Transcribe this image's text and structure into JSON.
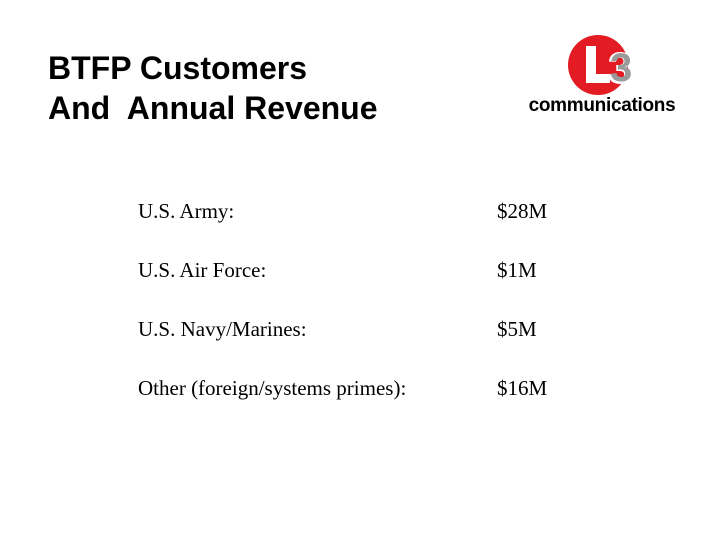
{
  "title": {
    "line1": "BTFP Customers",
    "line2": "And  Annual Revenue"
  },
  "logo": {
    "mark_text": "L3",
    "wordmark": "communications",
    "brand_color": "#e31b23"
  },
  "revenue_rows": [
    {
      "customer": "U.S. Army:",
      "revenue": "$28M"
    },
    {
      "customer": "U.S. Air Force:",
      "revenue": "$1M"
    },
    {
      "customer": "U.S. Navy/Marines:",
      "revenue": "$5M"
    },
    {
      "customer": "Other (foreign/systems primes):",
      "revenue": "$16M"
    }
  ]
}
